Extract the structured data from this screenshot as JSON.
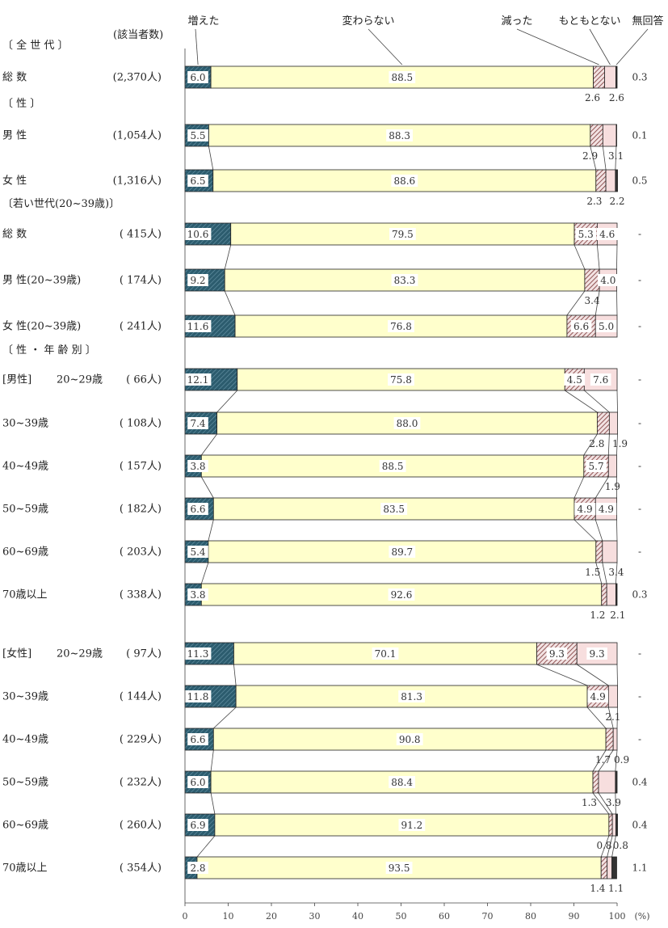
{
  "chart_data": {
    "type": "bar",
    "stacked": true,
    "orientation": "horizontal",
    "n_column_header": "(該当者数)",
    "legend": [
      "増えた",
      "変わらない",
      "減った",
      "もともとない",
      "無回答"
    ],
    "colors": [
      "#2c5c6e",
      "#ffffcc",
      "#8a4a4a",
      "#f6d8d8",
      "#333333"
    ],
    "xlim": [
      0,
      100
    ],
    "x_ticks": [
      "0",
      "10",
      "20",
      "30",
      "40",
      "50",
      "60",
      "70",
      "80",
      "90",
      "100"
    ],
    "x_unit": "(%)",
    "groups": [
      {
        "label": "〔 全 世 代 〕"
      },
      {
        "label": "〔 性 〕"
      },
      {
        "label": "〔若い世代(20~39歳)〕"
      },
      {
        "label": "〔 性 ・ 年 齢 別 〕"
      }
    ],
    "rows": [
      {
        "sub": "",
        "label": "総 数",
        "n": "(2,370人)",
        "values": [
          6.0,
          88.5,
          2.6,
          2.6,
          0.3
        ],
        "texts": [
          "6.0",
          "88.5",
          "2.6",
          "2.6",
          "0.3"
        ]
      },
      {
        "sub": "",
        "label": "男 性",
        "n": "(1,054人)",
        "values": [
          5.5,
          88.3,
          2.9,
          3.1,
          0.1
        ],
        "texts": [
          "5.5",
          "88.3",
          "2.9",
          "3.1",
          "0.1"
        ]
      },
      {
        "sub": "",
        "label": "女 性",
        "n": "(1,316人)",
        "values": [
          6.5,
          88.6,
          2.3,
          2.2,
          0.5
        ],
        "texts": [
          "6.5",
          "88.6",
          "2.3",
          "2.2",
          "0.5"
        ]
      },
      {
        "sub": "",
        "label": "総 数",
        "n": "( 415人)",
        "values": [
          10.6,
          79.5,
          5.3,
          4.6,
          0
        ],
        "texts": [
          "10.6",
          "79.5",
          "5.3",
          "4.6",
          "-"
        ]
      },
      {
        "sub": "",
        "label": "男 性(20~39歳)",
        "n": "( 174人)",
        "values": [
          9.2,
          83.3,
          3.4,
          4.0,
          0
        ],
        "texts": [
          "9.2",
          "83.3",
          "3.4",
          "4.0",
          "-"
        ]
      },
      {
        "sub": "",
        "label": "女 性(20~39歳)",
        "n": "( 241人)",
        "values": [
          11.6,
          76.8,
          6.6,
          5.0,
          0
        ],
        "texts": [
          "11.6",
          "76.8",
          "6.6",
          "5.0",
          "-"
        ]
      },
      {
        "sub": "[男性]",
        "label": "20~29歳",
        "n": "( 66人)",
        "values": [
          12.1,
          75.8,
          4.5,
          7.6,
          0
        ],
        "texts": [
          "12.1",
          "75.8",
          "4.5",
          "7.6",
          "-"
        ]
      },
      {
        "sub": "",
        "label": "30~39歳",
        "n": "( 108人)",
        "values": [
          7.4,
          88.0,
          2.8,
          1.9,
          0
        ],
        "texts": [
          "7.4",
          "88.0",
          "2.8",
          "1.9",
          "-"
        ]
      },
      {
        "sub": "",
        "label": "40~49歳",
        "n": "( 157人)",
        "values": [
          3.8,
          88.5,
          5.7,
          1.9,
          0
        ],
        "texts": [
          "3.8",
          "88.5",
          "5.7",
          "1.9",
          "-"
        ]
      },
      {
        "sub": "",
        "label": "50~59歳",
        "n": "( 182人)",
        "values": [
          6.6,
          83.5,
          4.9,
          4.9,
          0
        ],
        "texts": [
          "6.6",
          "83.5",
          "4.9",
          "4.9",
          "-"
        ]
      },
      {
        "sub": "",
        "label": "60~69歳",
        "n": "( 203人)",
        "values": [
          5.4,
          89.7,
          1.5,
          3.4,
          0
        ],
        "texts": [
          "5.4",
          "89.7",
          "1.5",
          "3.4",
          "-"
        ]
      },
      {
        "sub": "",
        "label": "70歳以上",
        "n": "( 338人)",
        "values": [
          3.8,
          92.6,
          1.2,
          2.1,
          0.3
        ],
        "texts": [
          "3.8",
          "92.6",
          "1.2",
          "2.1",
          "0.3"
        ]
      },
      {
        "sub": "[女性]",
        "label": "20~29歳",
        "n": "( 97人)",
        "values": [
          11.3,
          70.1,
          9.3,
          9.3,
          0
        ],
        "texts": [
          "11.3",
          "70.1",
          "9.3",
          "9.3",
          "-"
        ]
      },
      {
        "sub": "",
        "label": "30~39歳",
        "n": "( 144人)",
        "values": [
          11.8,
          81.3,
          4.9,
          2.1,
          0
        ],
        "texts": [
          "11.8",
          "81.3",
          "4.9",
          "2.1",
          "-"
        ]
      },
      {
        "sub": "",
        "label": "40~49歳",
        "n": "( 229人)",
        "values": [
          6.6,
          90.8,
          1.7,
          0.9,
          0
        ],
        "texts": [
          "6.6",
          "90.8",
          "1.7",
          "0.9",
          "-"
        ]
      },
      {
        "sub": "",
        "label": "50~59歳",
        "n": "( 232人)",
        "values": [
          6.0,
          88.4,
          1.3,
          3.9,
          0.4
        ],
        "texts": [
          "6.0",
          "88.4",
          "1.3",
          "3.9",
          "0.4"
        ]
      },
      {
        "sub": "",
        "label": "60~69歳",
        "n": "( 260人)",
        "values": [
          6.9,
          91.2,
          0.8,
          0.8,
          0.4
        ],
        "texts": [
          "6.9",
          "91.2",
          "0.8",
          "0.8",
          "0.4"
        ]
      },
      {
        "sub": "",
        "label": "70歳以上",
        "n": "( 354人)",
        "values": [
          2.8,
          93.5,
          1.4,
          1.1,
          1.1
        ],
        "texts": [
          "2.8",
          "93.5",
          "1.4",
          "1.1",
          "1.1"
        ]
      }
    ]
  }
}
